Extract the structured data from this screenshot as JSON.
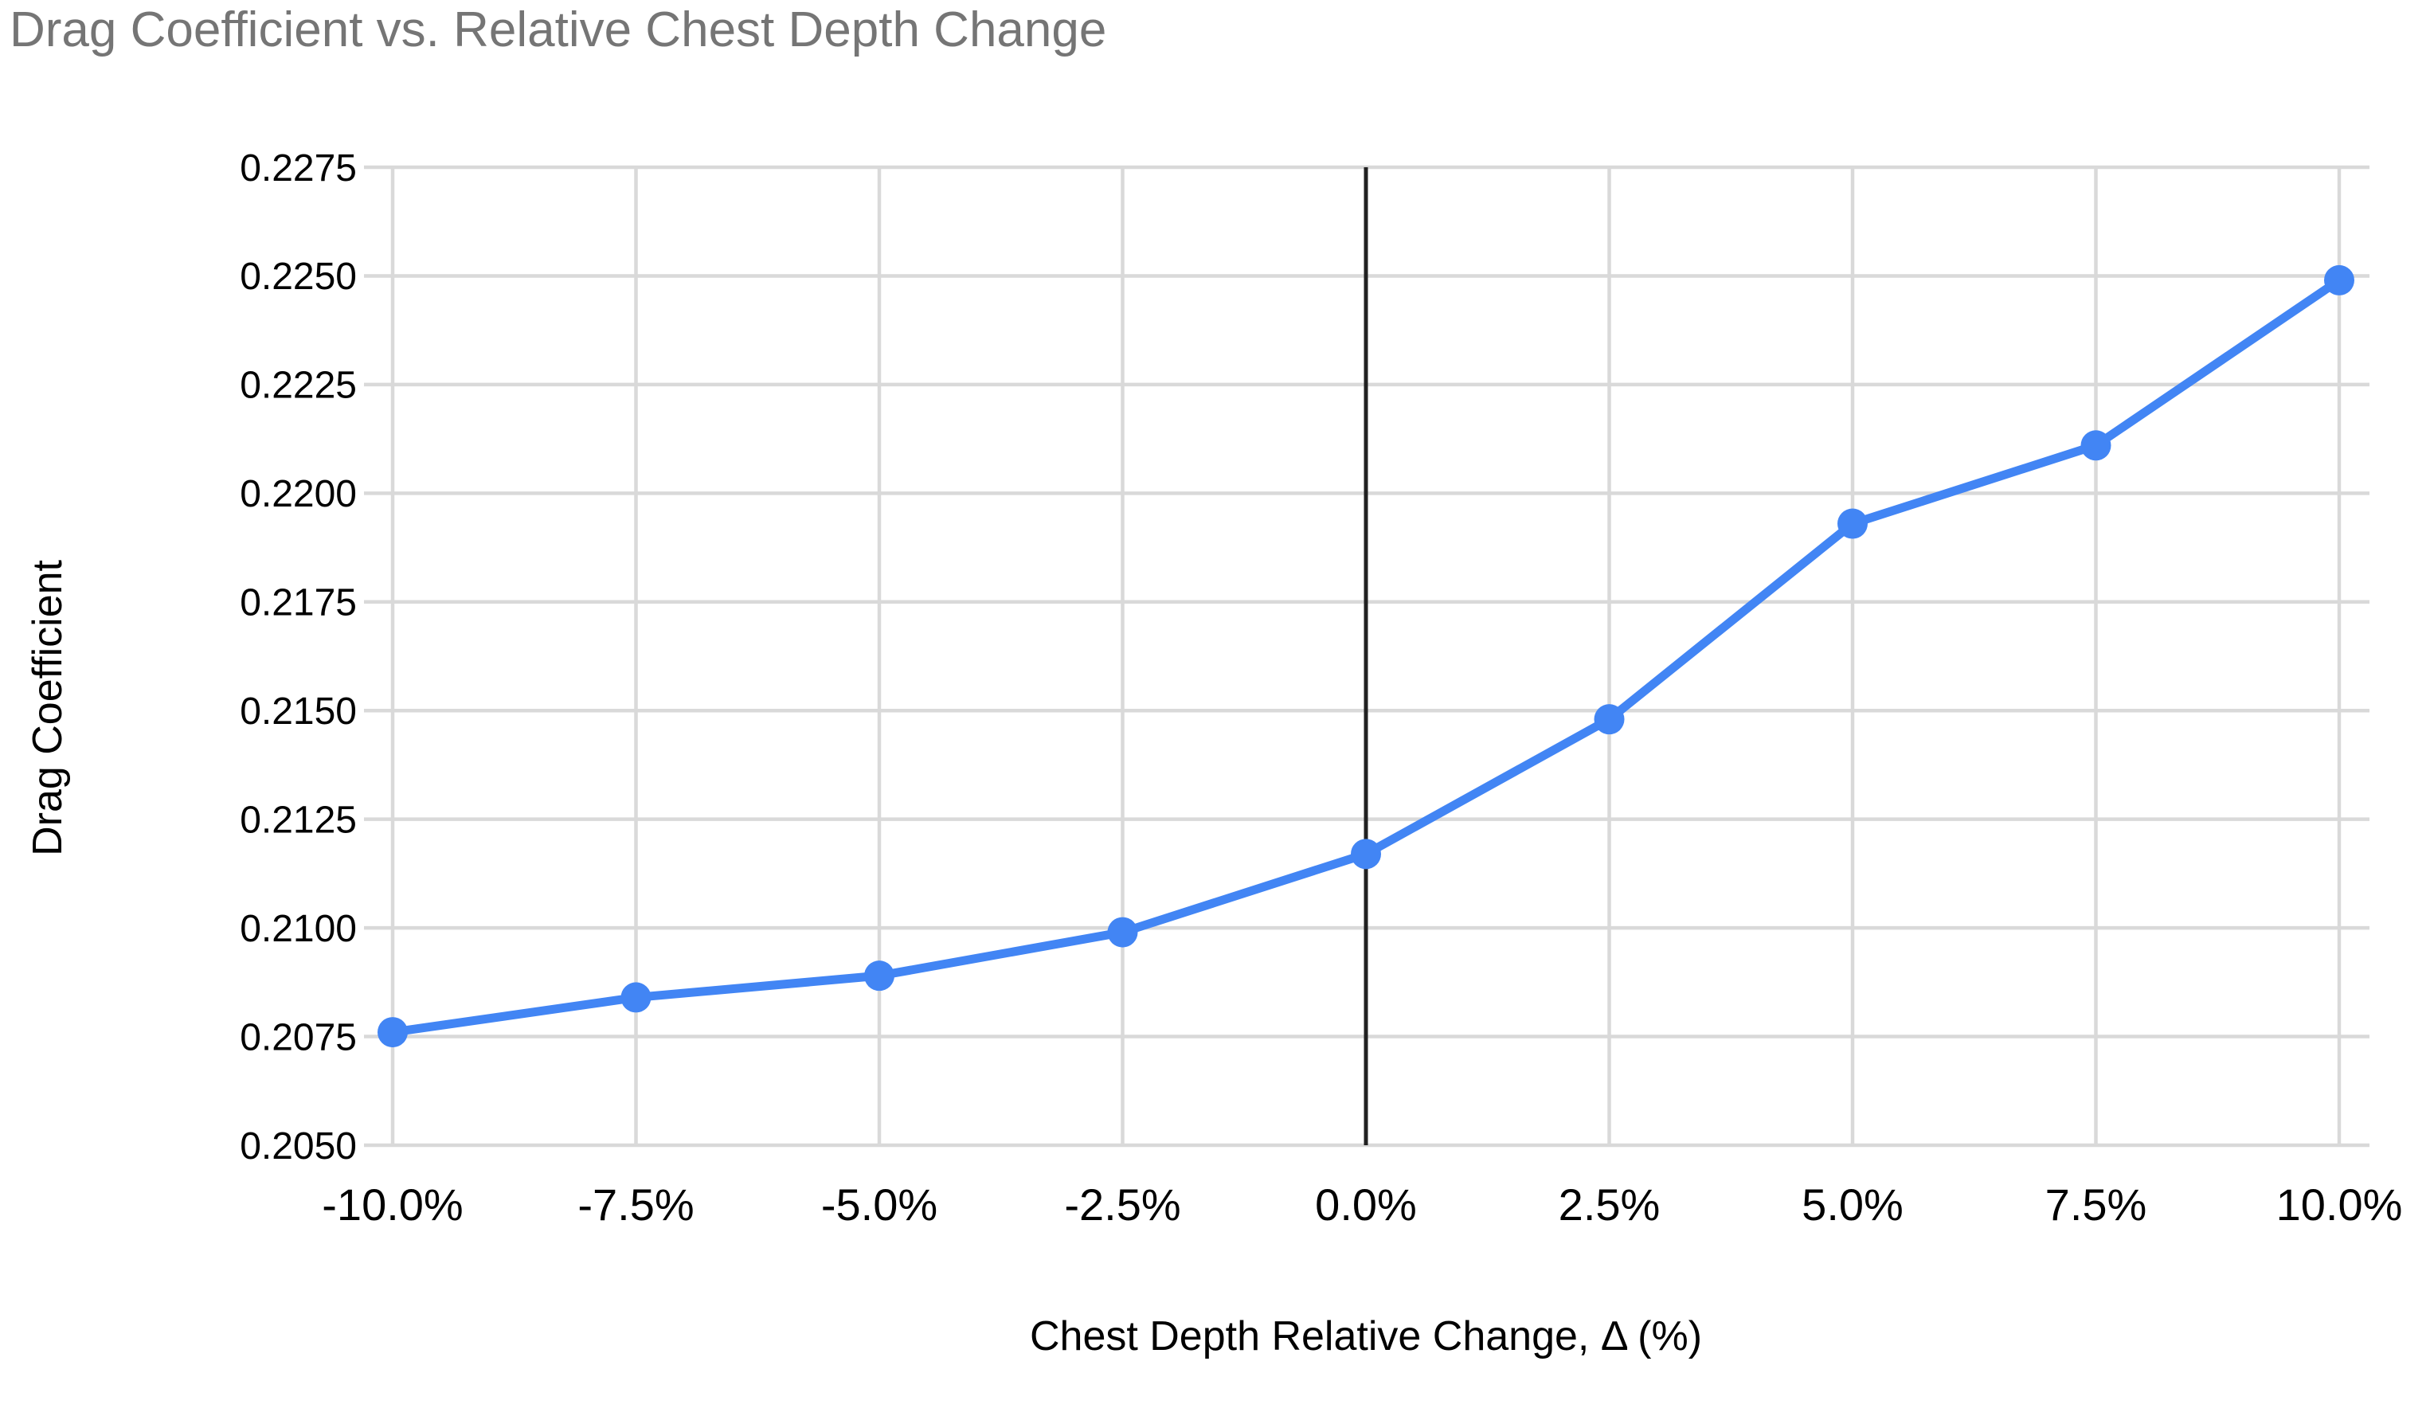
{
  "chart": {
    "title": "Drag Coefficient vs. Relative Chest Depth Change",
    "x_axis_title": "Chest Depth Relative Change, Δ (%)",
    "y_axis_title": "Drag Coefficient"
  },
  "chart_data": {
    "type": "line",
    "title": "Drag Coefficient vs. Relative Chest Depth Change",
    "xlabel": "Chest Depth Relative Change, Δ (%)",
    "ylabel": "Drag Coefficient",
    "categories": [
      "-10.0%",
      "-7.5%",
      "-5.0%",
      "-2.5%",
      "0.0%",
      "2.5%",
      "5.0%",
      "7.5%",
      "10.0%"
    ],
    "x_values": [
      -10.0,
      -7.5,
      -5.0,
      -2.5,
      0.0,
      2.5,
      5.0,
      7.5,
      10.0
    ],
    "series": [
      {
        "name": "Drag Coefficient",
        "values": [
          0.2076,
          0.2084,
          0.2089,
          0.2099,
          0.2117,
          0.2148,
          0.2193,
          0.2211,
          0.2249
        ]
      }
    ],
    "ylim": [
      0.205,
      0.2275
    ],
    "y_tick_step": 0.0025,
    "y_tick_labels": [
      "0.2050",
      "0.2075",
      "0.2100",
      "0.2125",
      "0.2150",
      "0.2175",
      "0.2200",
      "0.2225",
      "0.2250",
      "0.2275"
    ],
    "x_tick_labels": [
      "-10.0%",
      "-7.5%",
      "-5.0%",
      "-2.5%",
      "0.0%",
      "2.5%",
      "5.0%",
      "7.5%",
      "10.0%"
    ],
    "grid": true,
    "legend_position": "none",
    "reference_line_x": 0.0,
    "marker": "circle",
    "colors": {
      "series": "#4285f4",
      "reference_line": "#212121",
      "gridline": "#d9d9d9",
      "title_text": "#757575",
      "axis_text": "#000000"
    }
  }
}
